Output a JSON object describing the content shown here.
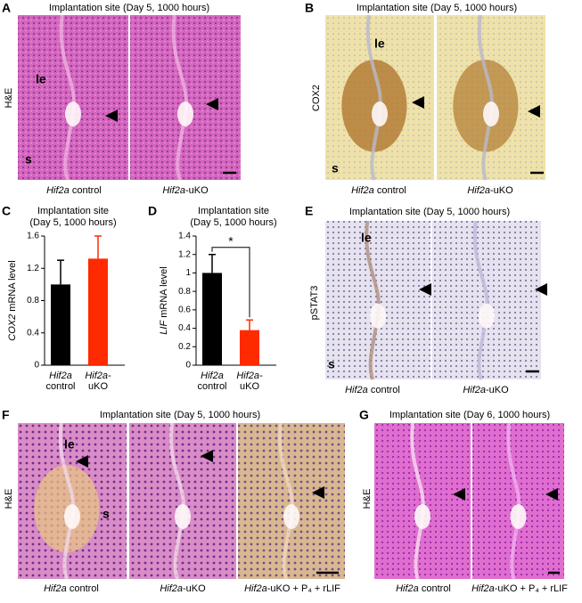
{
  "panels": {
    "A": {
      "label": "A",
      "title": "Implantation site (Day 5, 1000 hours)",
      "stain": "H&E",
      "annotations": [
        "le",
        "s"
      ],
      "captions": [
        {
          "gene": "Hif2a",
          "rest": " control"
        },
        {
          "gene": "Hif2a",
          "rest": "-uKO"
        }
      ]
    },
    "B": {
      "label": "B",
      "title": "Implantation site (Day 5, 1000 hours)",
      "stain": "COX2",
      "annotations": [
        "le",
        "s"
      ],
      "captions": [
        {
          "gene": "Hif2a",
          "rest": " control"
        },
        {
          "gene": "Hif2a",
          "rest": "-uKO"
        }
      ]
    },
    "E": {
      "label": "E",
      "title": "Implantation site (Day 5, 1000 hours)",
      "stain": "pSTAT3",
      "annotations": [
        "le",
        "s"
      ],
      "captions": [
        {
          "gene": "Hif2a",
          "rest": " control"
        },
        {
          "gene": "Hif2a",
          "rest": "-uKO"
        }
      ]
    },
    "F": {
      "label": "F",
      "title": "Implantation site (Day 5, 1000 hours)",
      "stain": "H&E",
      "annotations": [
        "le",
        "s"
      ],
      "captions": [
        {
          "gene": "Hif2a",
          "rest": " control"
        },
        {
          "gene": "Hif2a",
          "rest": "-uKO"
        },
        {
          "gene": "Hif2a",
          "rest": "-uKO + P₄ + rLIF"
        }
      ]
    },
    "G": {
      "label": "G",
      "title": "Implantation site (Day 6, 1000 hours)",
      "stain": "H&E",
      "captions": [
        {
          "gene": "Hif2a",
          "rest": " control"
        },
        {
          "gene": "Hif2a",
          "rest": "-uKO + P₄ + rLIF"
        }
      ]
    }
  },
  "chart_data": [
    {
      "type": "bar",
      "label": "C",
      "title": [
        "Implantation site",
        "(Day 5, 1000 hours)"
      ],
      "y_label": {
        "gene": "COX2",
        "rest": " mRNA level"
      },
      "categories": [
        [
          "Hif2a",
          "control"
        ],
        [
          "Hif2a-",
          "uKO"
        ]
      ],
      "values": [
        1.0,
        1.32
      ],
      "errors": [
        0.3,
        0.28
      ],
      "colors": [
        "#000000",
        "#ff2a00"
      ],
      "ylim": [
        0,
        1.6
      ],
      "yticks": [
        0,
        0.4,
        0.8,
        1.2,
        1.6
      ]
    },
    {
      "type": "bar",
      "label": "D",
      "title": [
        "Implantation site",
        "(Day 5, 1000 hours)"
      ],
      "y_label": {
        "gene": "LIF",
        "rest": " mRNA level"
      },
      "categories": [
        [
          "Hif2a",
          "control"
        ],
        [
          "Hif2a-",
          "uKO"
        ]
      ],
      "values": [
        1.0,
        0.38
      ],
      "errors": [
        0.2,
        0.11
      ],
      "colors": [
        "#000000",
        "#ff2a00"
      ],
      "ylim": [
        0,
        1.4
      ],
      "yticks": [
        0,
        0.2,
        0.4,
        0.6,
        0.8,
        1,
        1.2,
        1.4
      ],
      "significance": "*"
    }
  ]
}
